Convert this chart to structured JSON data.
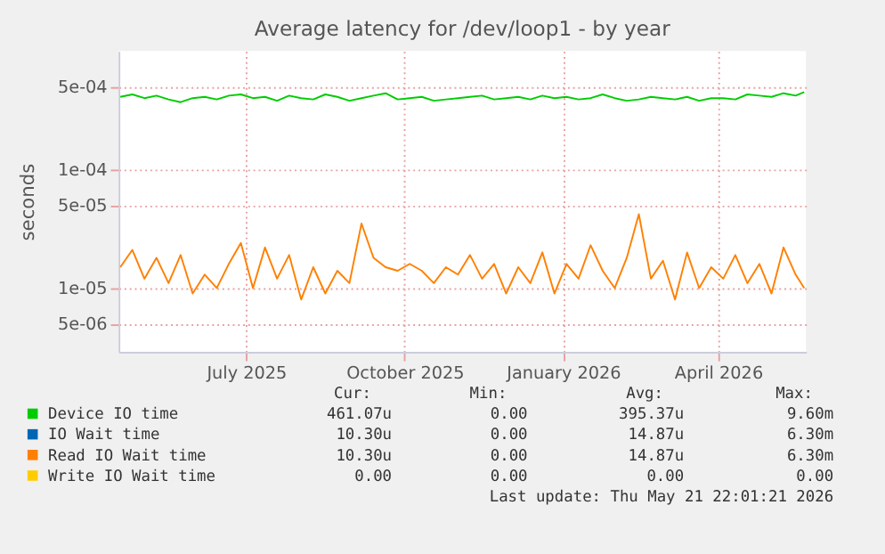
{
  "chart_data": {
    "type": "line",
    "title": "Average latency for /dev/loop1 - by year",
    "ylabel": "seconds",
    "x": [
      "2025-04-19",
      "2025-04-26",
      "2025-05-03",
      "2025-05-10",
      "2025-05-17",
      "2025-05-24",
      "2025-05-31",
      "2025-06-07",
      "2025-06-14",
      "2025-06-21",
      "2025-06-28",
      "2025-07-05",
      "2025-07-12",
      "2025-07-19",
      "2025-07-26",
      "2025-08-02",
      "2025-08-09",
      "2025-08-16",
      "2025-08-23",
      "2025-08-30",
      "2025-09-06",
      "2025-09-13",
      "2025-09-20",
      "2025-09-27",
      "2025-10-04",
      "2025-10-11",
      "2025-10-18",
      "2025-10-25",
      "2025-11-01",
      "2025-11-08",
      "2025-11-15",
      "2025-11-22",
      "2025-11-29",
      "2025-12-06",
      "2025-12-13",
      "2025-12-20",
      "2025-12-27",
      "2026-01-03",
      "2026-01-10",
      "2026-01-17",
      "2026-01-24",
      "2026-01-31",
      "2026-02-07",
      "2026-02-14",
      "2026-02-21",
      "2026-02-28",
      "2026-03-07",
      "2026-03-14",
      "2026-03-21",
      "2026-03-28",
      "2026-04-04",
      "2026-04-11",
      "2026-04-18",
      "2026-04-25",
      "2026-05-02",
      "2026-05-09",
      "2026-05-16",
      "2026-05-21"
    ],
    "series": [
      {
        "name": "Device IO time",
        "color": "#00cc00",
        "values": [
          0.00041,
          0.00043,
          0.0004,
          0.00042,
          0.00039,
          0.00037,
          0.0004,
          0.00041,
          0.00039,
          0.00042,
          0.00043,
          0.0004,
          0.00041,
          0.00038,
          0.00042,
          0.0004,
          0.00039,
          0.00043,
          0.00041,
          0.00038,
          0.0004,
          0.00042,
          0.00044,
          0.00039,
          0.0004,
          0.00041,
          0.00038,
          0.00039,
          0.0004,
          0.00041,
          0.00042,
          0.00039,
          0.0004,
          0.00041,
          0.00039,
          0.00042,
          0.0004,
          0.00041,
          0.00039,
          0.0004,
          0.00043,
          0.0004,
          0.00038,
          0.00039,
          0.00041,
          0.0004,
          0.00039,
          0.00041,
          0.00038,
          0.0004,
          0.0004,
          0.00039,
          0.00043,
          0.00042,
          0.00041,
          0.00044,
          0.00042,
          0.00045
        ]
      },
      {
        "name": "IO Wait time",
        "color": "#0066b3",
        "values": [
          null,
          null,
          null,
          null,
          null,
          null,
          null,
          null,
          null,
          null,
          null,
          null,
          null,
          null,
          null,
          null,
          null,
          null,
          null,
          null,
          null,
          null,
          null,
          null,
          null,
          null,
          null,
          null,
          null,
          null,
          null,
          null,
          null,
          null,
          null,
          null,
          null,
          null,
          null,
          null,
          null,
          null,
          null,
          null,
          null,
          null,
          null,
          null,
          null,
          null,
          null,
          null,
          null,
          null,
          null,
          null,
          null,
          null
        ]
      },
      {
        "name": "Read IO Wait time",
        "color": "#ff8000",
        "values": [
          1.5e-05,
          2.1e-05,
          1.2e-05,
          1.8e-05,
          1.1e-05,
          1.9e-05,
          9e-06,
          1.3e-05,
          1e-05,
          1.6e-05,
          2.4e-05,
          1e-05,
          2.2e-05,
          1.2e-05,
          1.9e-05,
          8e-06,
          1.5e-05,
          9e-06,
          1.4e-05,
          1.1e-05,
          3.5e-05,
          1.8e-05,
          1.5e-05,
          1.4e-05,
          1.6e-05,
          1.4e-05,
          1.1e-05,
          1.5e-05,
          1.3e-05,
          1.9e-05,
          1.2e-05,
          1.6e-05,
          9e-06,
          1.5e-05,
          1.1e-05,
          2e-05,
          9e-06,
          1.6e-05,
          1.2e-05,
          2.3e-05,
          1.4e-05,
          1e-05,
          1.8e-05,
          4.2e-05,
          1.2e-05,
          1.7e-05,
          8e-06,
          2e-05,
          1e-05,
          1.5e-05,
          1.2e-05,
          1.9e-05,
          1.1e-05,
          1.6e-05,
          9e-06,
          2.2e-05,
          1.3e-05,
          1e-05
        ]
      },
      {
        "name": "Write IO Wait time",
        "color": "#ffcc00",
        "values": [
          null,
          null,
          null,
          null,
          null,
          null,
          null,
          null,
          null,
          null,
          null,
          null,
          null,
          null,
          null,
          null,
          null,
          null,
          null,
          null,
          null,
          null,
          null,
          null,
          null,
          null,
          null,
          null,
          null,
          null,
          null,
          null,
          null,
          null,
          null,
          null,
          null,
          null,
          null,
          null,
          null,
          null,
          null,
          null,
          null,
          null,
          null,
          null,
          null,
          null,
          null,
          null,
          null,
          null,
          null,
          null,
          null,
          null
        ]
      }
    ],
    "log": true,
    "xlim": [
      "2025-04-18",
      "2026-05-22"
    ],
    "xticks": [
      {
        "value": "2025-07-01",
        "label": "July 2025"
      },
      {
        "value": "2025-10-01",
        "label": "October 2025"
      },
      {
        "value": "2026-01-01",
        "label": "January 2026"
      },
      {
        "value": "2026-04-01",
        "label": "April 2026"
      }
    ],
    "ylim": [
      2.9e-06,
      0.001
    ],
    "yticks": [
      {
        "value": 5e-06,
        "label": "5e-06"
      },
      {
        "value": 1e-05,
        "label": "1e-05"
      },
      {
        "value": 5e-05,
        "label": "5e-05"
      },
      {
        "value": 0.0001,
        "label": "1e-04"
      },
      {
        "value": 0.0005,
        "label": "5e-04"
      }
    ],
    "grid": true,
    "legend": "bottom",
    "annotations": [
      "Cur:",
      "Min:",
      "Avg:",
      "Max:",
      "461.07u",
      "0.00",
      "395.37u",
      "9.60m",
      "10.30u",
      "0.00",
      "14.87u",
      "6.30m",
      "10.30u",
      "0.00",
      "14.87u",
      "6.30m",
      "0.00",
      "0.00",
      "0.00",
      "0.00",
      "Last update: Thu May 21 22:01:21 2026"
    ]
  }
}
